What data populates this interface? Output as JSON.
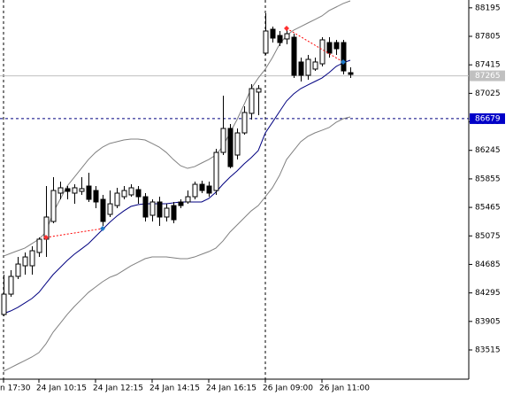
{
  "chart_data": {
    "type": "candlestick",
    "categories": [
      "n 17:30",
      null,
      null,
      null,
      null,
      "24 Jan 10:15",
      null,
      null,
      null,
      null,
      null,
      null,
      null,
      "24 Jan 12:15",
      null,
      null,
      null,
      null,
      null,
      null,
      null,
      "24 Jan 14:15",
      null,
      null,
      null,
      null,
      null,
      null,
      null,
      "24 Jan 16:15",
      null,
      null,
      null,
      null,
      null,
      null,
      null,
      "26 Jan 09:00",
      null,
      null,
      null,
      null,
      null,
      null,
      null,
      "26 Jan 11:00",
      null,
      null,
      null,
      null
    ],
    "open": [
      84000,
      84278,
      84521,
      84666,
      84666,
      84848,
      85030,
      85272,
      85660,
      85721,
      85660,
      85684,
      85757,
      85696,
      85575,
      85369,
      85490,
      85611,
      85636,
      85708,
      85611,
      85357,
      85539,
      85333,
      85490,
      85539,
      85539,
      85611,
      85781,
      85757,
      85696,
      86217,
      86545,
      86181,
      86484,
      86751,
      87042,
      87575,
      87902,
      87817,
      87769,
      87793,
      87454,
      87272,
      87357,
      87429,
      87720,
      87720,
      87720,
      87308
    ],
    "high": [
      84545,
      84605,
      84787,
      84848,
      84933,
      85054,
      85757,
      85878,
      85818,
      85757,
      85781,
      85878,
      85939,
      85757,
      85636,
      85696,
      85733,
      85757,
      85781,
      85757,
      85660,
      85575,
      85611,
      85514,
      85539,
      85575,
      85696,
      85818,
      85830,
      85818,
      86266,
      86993,
      86605,
      86545,
      86848,
      87151,
      87139,
      88120,
      87938,
      87878,
      87938,
      87841,
      87514,
      87551,
      87514,
      87793,
      87793,
      87757,
      87757,
      87381
    ],
    "low": [
      83975,
      84242,
      84484,
      84545,
      84545,
      84787,
      84787,
      85248,
      85575,
      85575,
      85514,
      85636,
      85539,
      85454,
      85211,
      85333,
      85454,
      85575,
      85611,
      85514,
      85272,
      85272,
      85211,
      85272,
      85248,
      85454,
      85514,
      85575,
      85660,
      85611,
      85636,
      86181,
      85999,
      86120,
      86460,
      86666,
      86726,
      87551,
      87720,
      87672,
      87696,
      87235,
      87187,
      87211,
      87332,
      87393,
      87514,
      87551,
      87284,
      87235
    ],
    "close": [
      84278,
      84521,
      84690,
      84787,
      84872,
      85030,
      85333,
      85696,
      85733,
      85684,
      85733,
      85721,
      85575,
      85539,
      85272,
      85514,
      85660,
      85696,
      85733,
      85611,
      85333,
      85539,
      85333,
      85454,
      85296,
      85490,
      85611,
      85781,
      85696,
      85660,
      86217,
      86545,
      86023,
      86484,
      86763,
      87090,
      87090,
      87878,
      87781,
      87720,
      87841,
      87272,
      87272,
      87490,
      87454,
      87757,
      87575,
      87635,
      87332,
      87284
    ],
    "up_color": "#ffffff",
    "down_color": "#000000",
    "series": [
      {
        "color": "#808080",
        "values": [
          84799,
          84836,
          84872,
          84908,
          84969,
          85030,
          85127,
          85393,
          85575,
          85757,
          85878,
          85999,
          86120,
          86217,
          86290,
          86339,
          86363,
          86387,
          86399,
          86399,
          86387,
          86339,
          86290,
          86217,
          86120,
          86036,
          85999,
          86023,
          86072,
          86120,
          86181,
          86302,
          86484,
          86666,
          86872,
          87090,
          87235,
          87357,
          87514,
          87696,
          87817,
          87890,
          87938,
          87987,
          88035,
          88084,
          88157,
          88205,
          88254,
          88290
        ]
      },
      {
        "color": "#000080",
        "values": [
          84012,
          84048,
          84096,
          84157,
          84218,
          84302,
          84424,
          84545,
          84642,
          84739,
          84824,
          84896,
          84969,
          85066,
          85163,
          85260,
          85345,
          85417,
          85478,
          85502,
          85514,
          85514,
          85514,
          85514,
          85527,
          85539,
          85539,
          85539,
          85539,
          85587,
          85672,
          85781,
          85878,
          85963,
          86060,
          86145,
          86242,
          86484,
          86629,
          86775,
          86920,
          87017,
          87090,
          87139,
          87187,
          87235,
          87308,
          87393,
          87442,
          87478
        ]
      },
      {
        "color": "#808080",
        "values": [
          83224,
          83272,
          83321,
          83369,
          83418,
          83478,
          83599,
          83757,
          83878,
          84000,
          84109,
          84205,
          84302,
          84375,
          84448,
          84508,
          84545,
          84605,
          84666,
          84714,
          84763,
          84787,
          84787,
          84787,
          84775,
          84763,
          84763,
          84787,
          84824,
          84860,
          84908,
          85005,
          85127,
          85224,
          85321,
          85417,
          85490,
          85611,
          85733,
          85902,
          86120,
          86242,
          86363,
          86436,
          86484,
          86520,
          86557,
          86629,
          86678,
          86702
        ]
      }
    ],
    "trades": [
      {
        "entry_index": 6,
        "entry_price": 85054,
        "exit_index": 14,
        "exit_price": 85175
      },
      {
        "entry_index": 40,
        "entry_price": 87914,
        "exit_index": 48,
        "exit_price": 87454
      }
    ],
    "bid": 87265,
    "level": 86679,
    "ylim": [
      83115,
      88302
    ],
    "yticks": [
      88195,
      87805,
      87415,
      87025,
      86635,
      86245,
      85855,
      85465,
      85075,
      84685,
      84295,
      83905,
      83515
    ]
  }
}
